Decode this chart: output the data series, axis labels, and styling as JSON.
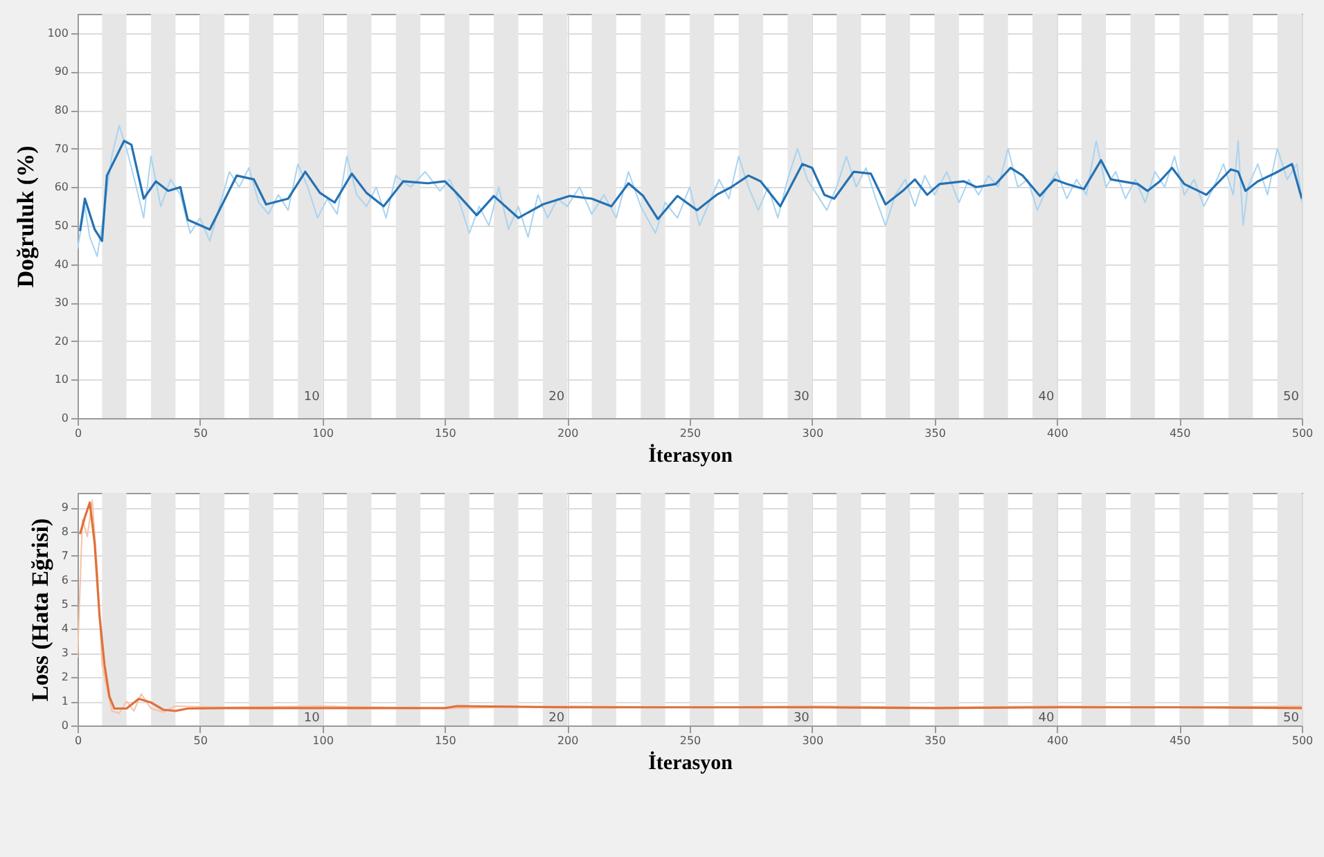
{
  "chart_data": [
    {
      "type": "line",
      "ylabel": "Doğruluk (%)",
      "xlabel": "İterasyon",
      "xlim": [
        0,
        500
      ],
      "ylim": [
        0,
        105
      ],
      "xticks": [
        0,
        50,
        100,
        150,
        200,
        250,
        300,
        350,
        400,
        450,
        500
      ],
      "yticks": [
        0,
        10,
        20,
        30,
        40,
        50,
        60,
        70,
        80,
        90,
        100
      ],
      "grid": true,
      "series": [
        {
          "color": "#a9d4f0",
          "x": [
            0,
            3,
            5,
            8,
            10,
            14,
            17,
            20,
            24,
            27,
            30,
            34,
            38,
            42,
            46,
            50,
            54,
            58,
            62,
            66,
            70,
            74,
            78,
            82,
            86,
            90,
            94,
            98,
            102,
            106,
            110,
            114,
            118,
            122,
            126,
            130,
            136,
            142,
            148,
            152,
            156,
            160,
            164,
            168,
            172,
            176,
            180,
            184,
            188,
            192,
            196,
            200,
            205,
            210,
            215,
            220,
            225,
            230,
            236,
            240,
            245,
            250,
            254,
            258,
            262,
            266,
            270,
            274,
            278,
            282,
            286,
            290,
            294,
            298,
            302,
            306,
            310,
            314,
            318,
            322,
            326,
            330,
            334,
            338,
            342,
            346,
            350,
            355,
            360,
            364,
            368,
            372,
            376,
            380,
            384,
            388,
            392,
            396,
            400,
            404,
            408,
            412,
            416,
            420,
            424,
            428,
            432,
            436,
            440,
            444,
            448,
            452,
            456,
            460,
            464,
            468,
            472,
            474,
            476,
            478,
            482,
            486,
            490,
            494,
            498,
            500
          ],
          "values": [
            44,
            55,
            47,
            42,
            50,
            68,
            76,
            70,
            60,
            52,
            68,
            55,
            62,
            58,
            48,
            52,
            46,
            55,
            64,
            60,
            65,
            56,
            53,
            58,
            54,
            66,
            60,
            52,
            57,
            53,
            68,
            58,
            55,
            60,
            52,
            63,
            60,
            64,
            59,
            62,
            56,
            48,
            55,
            50,
            60,
            49,
            55,
            47,
            58,
            52,
            57,
            55,
            60,
            53,
            58,
            52,
            64,
            55,
            48,
            56,
            52,
            60,
            50,
            56,
            62,
            57,
            68,
            60,
            54,
            60,
            52,
            62,
            70,
            62,
            58,
            54,
            60,
            68,
            60,
            65,
            57,
            50,
            58,
            62,
            55,
            63,
            58,
            64,
            56,
            62,
            58,
            63,
            60,
            70,
            60,
            62,
            54,
            60,
            64,
            57,
            62,
            58,
            72,
            60,
            64,
            57,
            62,
            56,
            64,
            60,
            68,
            58,
            62,
            55,
            60,
            66,
            58,
            72,
            50,
            60,
            66,
            58,
            70,
            62,
            66,
            56
          ]
        },
        {
          "color": "#2471b3",
          "x": [
            1,
            3,
            7,
            10,
            12,
            19,
            22,
            27,
            32,
            37,
            42,
            45,
            54,
            65,
            72,
            77,
            86,
            93,
            99,
            105,
            112,
            118,
            125,
            133,
            143,
            150,
            154,
            163,
            170,
            180,
            190,
            201,
            210,
            218,
            225,
            231,
            237,
            245,
            253,
            261,
            267,
            274,
            279,
            287,
            296,
            300,
            305,
            309,
            317,
            324,
            330,
            337,
            342,
            347,
            352,
            362,
            367,
            375,
            381,
            386,
            393,
            399,
            404,
            411,
            418,
            422,
            433,
            437,
            442,
            447,
            452,
            461,
            471,
            474,
            477,
            482,
            489,
            496,
            500
          ],
          "values": [
            48.6,
            57,
            49,
            46,
            63,
            72,
            71,
            57,
            61.5,
            59,
            60,
            51.5,
            49,
            63,
            62,
            55.5,
            57,
            64,
            58.5,
            56,
            63.5,
            58.5,
            55,
            61.5,
            61,
            61.5,
            59,
            52.7,
            57.7,
            52,
            55.5,
            57.7,
            57,
            55,
            61,
            57.7,
            51.7,
            57.7,
            54,
            58,
            60,
            63,
            61.5,
            55,
            66,
            65,
            58,
            57,
            64,
            63.5,
            55.5,
            59,
            62,
            58,
            60.8,
            61.5,
            60,
            60.8,
            65,
            63,
            57.7,
            62,
            60.8,
            59.5,
            67,
            62,
            60.8,
            59,
            61.5,
            65,
            60.8,
            58,
            64.6,
            64,
            59,
            61.5,
            63.6,
            66,
            57
          ]
        }
      ],
      "bands": [
        {
          "axis": "x",
          "from": 10,
          "to": 20,
          "color": "#e6e6e6"
        },
        {
          "axis": "x",
          "from": 30,
          "to": 40,
          "color": "#e6e6e6"
        },
        {
          "axis": "x",
          "from": 50,
          "to": 60,
          "color": "#e6e6e6"
        },
        {
          "axis": "x",
          "from": 70,
          "to": 80,
          "color": "#e6e6e6"
        },
        {
          "axis": "x",
          "from": 90,
          "to": 100,
          "color": "#e6e6e6"
        },
        {
          "axis": "x",
          "from": 110,
          "to": 120,
          "color": "#e6e6e6"
        },
        {
          "axis": "x",
          "from": 130,
          "to": 140,
          "color": "#e6e6e6"
        },
        {
          "axis": "x",
          "from": 150,
          "to": 160,
          "color": "#e6e6e6"
        },
        {
          "axis": "x",
          "from": 170,
          "to": 180,
          "color": "#e6e6e6"
        },
        {
          "axis": "x",
          "from": 190,
          "to": 200,
          "color": "#e6e6e6"
        },
        {
          "axis": "x",
          "from": 210,
          "to": 220,
          "color": "#e6e6e6"
        },
        {
          "axis": "x",
          "from": 230,
          "to": 240,
          "color": "#e6e6e6"
        },
        {
          "axis": "x",
          "from": 250,
          "to": 260,
          "color": "#e6e6e6"
        },
        {
          "axis": "x",
          "from": 270,
          "to": 280,
          "color": "#e6e6e6"
        },
        {
          "axis": "x",
          "from": 290,
          "to": 300,
          "color": "#e6e6e6"
        },
        {
          "axis": "x",
          "from": 310,
          "to": 320,
          "color": "#e6e6e6"
        },
        {
          "axis": "x",
          "from": 330,
          "to": 340,
          "color": "#e6e6e6"
        },
        {
          "axis": "x",
          "from": 350,
          "to": 360,
          "color": "#e6e6e6"
        },
        {
          "axis": "x",
          "from": 370,
          "to": 380,
          "color": "#e6e6e6"
        },
        {
          "axis": "x",
          "from": 390,
          "to": 400,
          "color": "#e6e6e6"
        },
        {
          "axis": "x",
          "from": 410,
          "to": 420,
          "color": "#e6e6e6"
        },
        {
          "axis": "x",
          "from": 430,
          "to": 440,
          "color": "#e6e6e6"
        },
        {
          "axis": "x",
          "from": 450,
          "to": 460,
          "color": "#e6e6e6"
        },
        {
          "axis": "x",
          "from": 470,
          "to": 480,
          "color": "#e6e6e6"
        },
        {
          "axis": "x",
          "from": 490,
          "to": 500,
          "color": "#e6e6e6"
        }
      ],
      "annotations": [
        {
          "text": "10",
          "x": 100,
          "y": 4
        },
        {
          "text": "20",
          "x": 200,
          "y": 4
        },
        {
          "text": "30",
          "x": 300,
          "y": 4
        },
        {
          "text": "40",
          "x": 400,
          "y": 4
        },
        {
          "text": "50",
          "x": 500,
          "y": 4
        }
      ]
    },
    {
      "type": "line",
      "ylabel": "Loss (Hata Eğrisi)",
      "xlabel": "İterasyon",
      "xlim": [
        0,
        500
      ],
      "ylim": [
        0,
        9.6
      ],
      "xticks": [
        0,
        50,
        100,
        150,
        200,
        250,
        300,
        350,
        400,
        450,
        500
      ],
      "yticks": [
        0,
        1,
        2,
        3,
        4,
        5,
        6,
        7,
        8,
        9
      ],
      "grid": true,
      "series": [
        {
          "color": "#f6c2a5",
          "x": [
            0,
            2,
            4,
            6,
            8,
            10,
            12,
            14,
            17,
            20,
            23,
            26,
            30,
            35,
            40,
            60,
            100,
            150,
            200,
            250,
            300,
            350,
            400,
            450,
            500
          ],
          "values": [
            2.8,
            8.5,
            7.8,
            9.3,
            6.5,
            2.5,
            1.5,
            0.6,
            0.5,
            1,
            0.6,
            1.3,
            0.7,
            0.55,
            0.8,
            0.75,
            0.8,
            0.7,
            0.8,
            0.75,
            0.8,
            0.75,
            0.8,
            0.75,
            0.8
          ]
        },
        {
          "color": "#e0703a",
          "x": [
            1,
            3,
            5,
            7,
            9,
            11,
            13,
            15,
            20,
            25,
            30,
            35,
            40,
            45,
            60,
            100,
            150,
            155,
            200,
            250,
            300,
            350,
            400,
            450,
            500
          ],
          "values": [
            7.9,
            8.6,
            9.2,
            7.5,
            4.5,
            2.5,
            1.2,
            0.7,
            0.7,
            1.1,
            0.95,
            0.65,
            0.6,
            0.7,
            0.72,
            0.72,
            0.72,
            0.8,
            0.75,
            0.75,
            0.75,
            0.72,
            0.75,
            0.75,
            0.72
          ]
        }
      ],
      "bands": [
        {
          "axis": "x",
          "from": 10,
          "to": 20,
          "color": "#e6e6e6"
        },
        {
          "axis": "x",
          "from": 30,
          "to": 40,
          "color": "#e6e6e6"
        },
        {
          "axis": "x",
          "from": 50,
          "to": 60,
          "color": "#e6e6e6"
        },
        {
          "axis": "x",
          "from": 70,
          "to": 80,
          "color": "#e6e6e6"
        },
        {
          "axis": "x",
          "from": 90,
          "to": 100,
          "color": "#e6e6e6"
        },
        {
          "axis": "x",
          "from": 110,
          "to": 120,
          "color": "#e6e6e6"
        },
        {
          "axis": "x",
          "from": 130,
          "to": 140,
          "color": "#e6e6e6"
        },
        {
          "axis": "x",
          "from": 150,
          "to": 160,
          "color": "#e6e6e6"
        },
        {
          "axis": "x",
          "from": 170,
          "to": 180,
          "color": "#e6e6e6"
        },
        {
          "axis": "x",
          "from": 190,
          "to": 200,
          "color": "#e6e6e6"
        },
        {
          "axis": "x",
          "from": 210,
          "to": 220,
          "color": "#e6e6e6"
        },
        {
          "axis": "x",
          "from": 230,
          "to": 240,
          "color": "#e6e6e6"
        },
        {
          "axis": "x",
          "from": 250,
          "to": 260,
          "color": "#e6e6e6"
        },
        {
          "axis": "x",
          "from": 270,
          "to": 280,
          "color": "#e6e6e6"
        },
        {
          "axis": "x",
          "from": 290,
          "to": 300,
          "color": "#e6e6e6"
        },
        {
          "axis": "x",
          "from": 310,
          "to": 320,
          "color": "#e6e6e6"
        },
        {
          "axis": "x",
          "from": 330,
          "to": 340,
          "color": "#e6e6e6"
        },
        {
          "axis": "x",
          "from": 350,
          "to": 360,
          "color": "#e6e6e6"
        },
        {
          "axis": "x",
          "from": 370,
          "to": 380,
          "color": "#e6e6e6"
        },
        {
          "axis": "x",
          "from": 390,
          "to": 400,
          "color": "#e6e6e6"
        },
        {
          "axis": "x",
          "from": 410,
          "to": 420,
          "color": "#e6e6e6"
        },
        {
          "axis": "x",
          "from": 430,
          "to": 440,
          "color": "#e6e6e6"
        },
        {
          "axis": "x",
          "from": 450,
          "to": 460,
          "color": "#e6e6e6"
        },
        {
          "axis": "x",
          "from": 470,
          "to": 480,
          "color": "#e6e6e6"
        },
        {
          "axis": "x",
          "from": 490,
          "to": 500,
          "color": "#e6e6e6"
        }
      ],
      "annotations": [
        {
          "text": "10",
          "x": 100,
          "y": 0.05
        },
        {
          "text": "20",
          "x": 200,
          "y": 0.05
        },
        {
          "text": "30",
          "x": 300,
          "y": 0.05
        },
        {
          "text": "40",
          "x": 400,
          "y": 0.05
        },
        {
          "text": "50",
          "x": 500,
          "y": 0.05
        }
      ]
    }
  ]
}
